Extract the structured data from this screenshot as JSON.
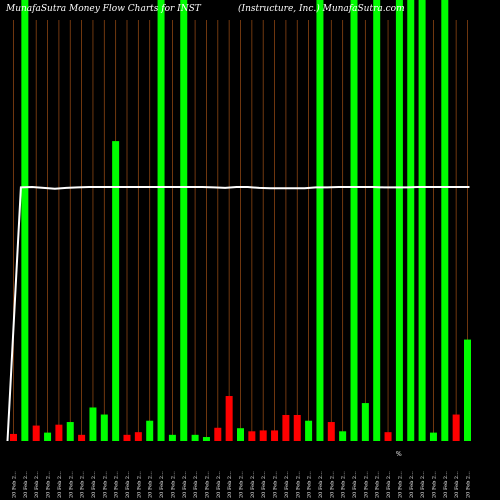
{
  "header": {
    "title_left": "MunafaSutra  Money Flow  Charts for INST",
    "title_right": "(Instructure,  Inc.) MunafaSutra.com"
  },
  "colors": {
    "background": "#000000",
    "gridline": "#8B4513",
    "up_bar": "#00FF00",
    "down_bar": "#FF0000",
    "price_line": "#FFFFFF"
  },
  "chart_data": {
    "type": "bar",
    "title": "MunafaSutra  Money Flow  Charts for INST",
    "subtitle": "(Instructure,  Inc.) MunafaSutra.com",
    "grid": true,
    "ylim": [
      0,
      100
    ],
    "categories": [
      "20 Feb 2...",
      "20 Feb 2...",
      "20 Feb 2...",
      "20 Feb 2...",
      "20 Feb 2...",
      "20 Feb 2...",
      "20 Feb 2...",
      "20 Feb 2...",
      "20 Feb 2...",
      "20 Feb 2...",
      "20 Feb 2...",
      "20 Feb 2...",
      "20 Feb 2...",
      "20 Feb 2...",
      "20 Feb 2...",
      "20 Feb 2...",
      "20 Feb 2...",
      "20 Feb 2...",
      "20 Feb 2...",
      "20 Feb 2...",
      "20 Feb 2...",
      "20 Feb 2...",
      "20 Feb 2...",
      "20 Feb 2...",
      "20 Feb 2...",
      "20 Feb 2...",
      "20 Feb 2...",
      "20 Feb 2...",
      "20 Feb 2...",
      "20 Feb 2...",
      "20 Feb 2...",
      "20 Feb 2...",
      "20 Feb 2...",
      "20 Feb 2...",
      "20 Feb 2...",
      "20 Feb 2...",
      "20 Feb 2...",
      "20 Feb 2...",
      "20 Feb 2...",
      "20 Feb 2...",
      "20 Feb 2..."
    ],
    "series": [
      {
        "type": "bar",
        "values": [
          1.6,
          100,
          3.5,
          1.9,
          3.7,
          4.3,
          1.4,
          7.6,
          6.0,
          68.0,
          1.4,
          2.0,
          4.6,
          100,
          1.4,
          100,
          1.4,
          0.9,
          3.0,
          10.2,
          2.9,
          2.2,
          2.4,
          2.4,
          5.9,
          5.9,
          4.6,
          100,
          4.3,
          2.2,
          100,
          8.6,
          100,
          2.0,
          100,
          100,
          100,
          1.9,
          100,
          6.0,
          23.0
        ],
        "directions": [
          "down",
          "up",
          "down",
          "up",
          "down",
          "up",
          "down",
          "up",
          "up",
          "up",
          "down",
          "down",
          "up",
          "up",
          "up",
          "up",
          "up",
          "up",
          "down",
          "down",
          "up",
          "down",
          "down",
          "down",
          "down",
          "down",
          "up",
          "up",
          "down",
          "up",
          "up",
          "up",
          "up",
          "down",
          "up",
          "up",
          "up",
          "up",
          "up",
          "down",
          "up"
        ]
      },
      {
        "type": "line",
        "values": [
          null,
          57.5,
          57.6,
          57.4,
          57.2,
          57.4,
          57.5,
          57.6,
          57.6,
          57.6,
          57.6,
          57.6,
          57.6,
          57.6,
          57.6,
          57.6,
          57.6,
          57.6,
          57.5,
          57.4,
          57.6,
          57.6,
          57.4,
          57.3,
          57.3,
          57.3,
          57.3,
          57.5,
          57.5,
          57.6,
          57.6,
          57.6,
          57.6,
          57.5,
          57.5,
          57.5,
          57.6,
          57.6,
          57.6,
          57.6,
          57.6
        ],
        "lead_in_value": 0
      }
    ],
    "annotations": [
      "%"
    ]
  }
}
